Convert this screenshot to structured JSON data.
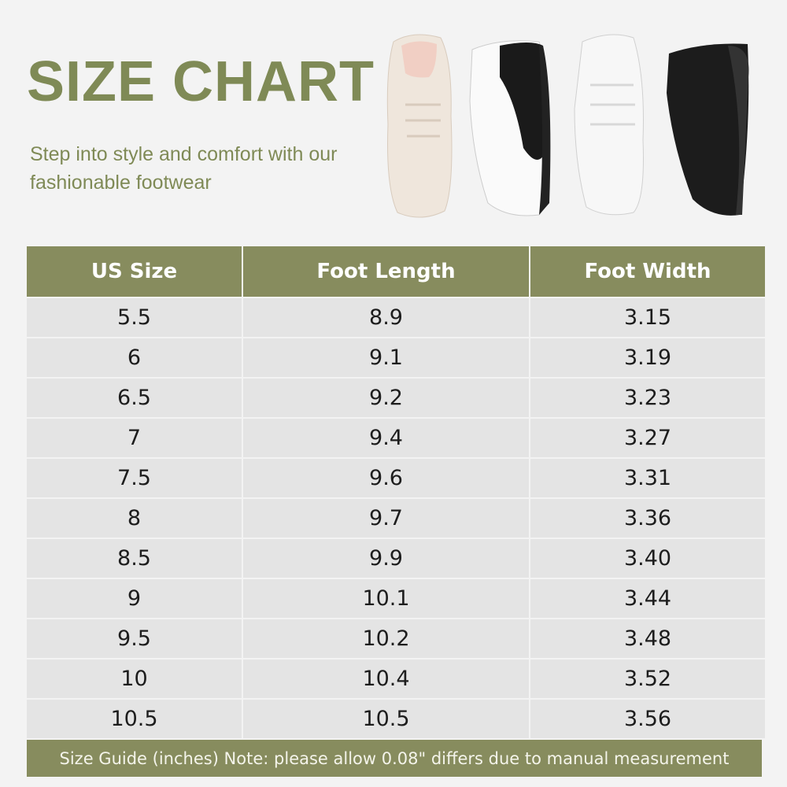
{
  "header": {
    "title": "SIZE CHART",
    "subtitle": "Step into style and comfort with our fashionable footwear"
  },
  "colors": {
    "accent": "#878c5e",
    "title": "#7f8a56",
    "row_bg": "#e4e4e4",
    "page_bg": "#f3f3f3"
  },
  "product_image": {
    "items": [
      "beige-sneaker",
      "black-white-sneaker",
      "white-sneaker",
      "black-sneaker"
    ]
  },
  "table": {
    "columns": [
      "US Size",
      "Foot Length",
      "Foot Width"
    ],
    "rows": [
      [
        "5.5",
        "8.9",
        "3.15"
      ],
      [
        "6",
        "9.1",
        "3.19"
      ],
      [
        "6.5",
        "9.2",
        "3.23"
      ],
      [
        "7",
        "9.4",
        "3.27"
      ],
      [
        "7.5",
        "9.6",
        "3.31"
      ],
      [
        "8",
        "9.7",
        "3.36"
      ],
      [
        "8.5",
        "9.9",
        "3.40"
      ],
      [
        "9",
        "10.1",
        "3.44"
      ],
      [
        "9.5",
        "10.2",
        "3.48"
      ],
      [
        "10",
        "10.4",
        "3.52"
      ],
      [
        "10.5",
        "10.5",
        "3.56"
      ]
    ],
    "footer": "Size Guide (inches) Note: please allow 0.08\" differs due to manual measurement"
  }
}
